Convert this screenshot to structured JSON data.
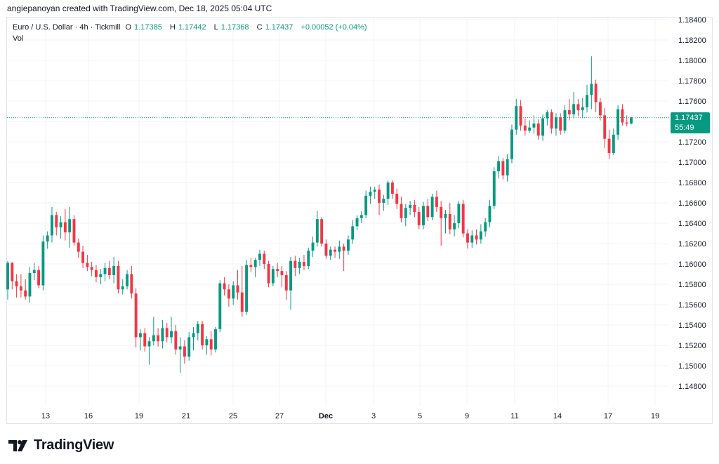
{
  "header": {
    "credit": "angiepanoyan created with TradingView.com, Dec 18, 2025 05:04 UTC"
  },
  "legend": {
    "symbol": "Euro / U.S. Dollar · 4h · Tickmill",
    "open_label": "O",
    "open": "1.17385",
    "high_label": "H",
    "high": "1.17442",
    "low_label": "L",
    "low": "1.17368",
    "close_label": "C",
    "close": "1.17437",
    "change": "+0.00052 (+0.04%)",
    "vol": "Vol"
  },
  "price_tag": {
    "price": "1.17437",
    "countdown": "55:49"
  },
  "brand": {
    "name": "TradingView"
  },
  "colors": {
    "up": "#089981",
    "down": "#f23645",
    "grid": "#f0f3fa",
    "text": "#131722"
  },
  "chart_data": {
    "type": "candlestick",
    "y_ticks": [
      1.184,
      1.182,
      1.18,
      1.178,
      1.176,
      1.174,
      1.172,
      1.17,
      1.168,
      1.166,
      1.164,
      1.162,
      1.16,
      1.158,
      1.156,
      1.154,
      1.152,
      1.15,
      1.148
    ],
    "y_tick_labels": [
      "1.18400",
      "1.18200",
      "1.18000",
      "1.17800",
      "1.17600",
      "1.17400",
      "1.17200",
      "1.17000",
      "1.16800",
      "1.16600",
      "1.16400",
      "1.16200",
      "1.16000",
      "1.15800",
      "1.15600",
      "1.15400",
      "1.15200",
      "1.15000",
      "1.14800"
    ],
    "x_ticks": [
      "13",
      "16",
      "19",
      "21",
      "25",
      "27",
      "Dec",
      "3",
      "5",
      "9",
      "11",
      "14",
      "17",
      "19"
    ],
    "last_price": 1.17437,
    "candles": [
      [
        1.1575,
        1.1603,
        1.1565,
        1.1601
      ],
      [
        1.1601,
        1.1602,
        1.1575,
        1.1583
      ],
      [
        1.1583,
        1.159,
        1.1567,
        1.1578
      ],
      [
        1.1578,
        1.159,
        1.1567,
        1.1574
      ],
      [
        1.1574,
        1.1585,
        1.1565,
        1.1568
      ],
      [
        1.1568,
        1.1597,
        1.1562,
        1.1591
      ],
      [
        1.1591,
        1.1601,
        1.1584,
        1.1594
      ],
      [
        1.1594,
        1.1598,
        1.1576,
        1.1579
      ],
      [
        1.1579,
        1.1628,
        1.1574,
        1.1622
      ],
      [
        1.1622,
        1.1632,
        1.1615,
        1.1628
      ],
      [
        1.1628,
        1.1656,
        1.1621,
        1.1648
      ],
      [
        1.1648,
        1.1651,
        1.1628,
        1.1636
      ],
      [
        1.1636,
        1.1647,
        1.1625,
        1.1641
      ],
      [
        1.1641,
        1.1654,
        1.1623,
        1.1631
      ],
      [
        1.1631,
        1.1656,
        1.1616,
        1.1644
      ],
      [
        1.1644,
        1.1648,
        1.1618,
        1.1621
      ],
      [
        1.1621,
        1.1625,
        1.1606,
        1.1612
      ],
      [
        1.1612,
        1.1618,
        1.1596,
        1.1601
      ],
      [
        1.1601,
        1.1609,
        1.1593,
        1.1597
      ],
      [
        1.1597,
        1.1602,
        1.1588,
        1.1594
      ],
      [
        1.1594,
        1.1599,
        1.1582,
        1.1587
      ],
      [
        1.1587,
        1.1595,
        1.158,
        1.159
      ],
      [
        1.159,
        1.1601,
        1.1583,
        1.1596
      ],
      [
        1.1596,
        1.1603,
        1.1585,
        1.1589
      ],
      [
        1.1589,
        1.1607,
        1.1581,
        1.1598
      ],
      [
        1.1598,
        1.1603,
        1.1571,
        1.1575
      ],
      [
        1.1575,
        1.1585,
        1.157,
        1.1578
      ],
      [
        1.1578,
        1.1594,
        1.1575,
        1.159
      ],
      [
        1.159,
        1.1598,
        1.1566,
        1.1571
      ],
      [
        1.1571,
        1.1576,
        1.1518,
        1.1528
      ],
      [
        1.1528,
        1.1536,
        1.1515,
        1.1532
      ],
      [
        1.1532,
        1.1537,
        1.1514,
        1.1519
      ],
      [
        1.1519,
        1.1528,
        1.1501,
        1.1524
      ],
      [
        1.1524,
        1.1548,
        1.152,
        1.153
      ],
      [
        1.153,
        1.1537,
        1.1519,
        1.1524
      ],
      [
        1.1524,
        1.1545,
        1.1517,
        1.1537
      ],
      [
        1.1537,
        1.1542,
        1.1523,
        1.1528
      ],
      [
        1.1528,
        1.1548,
        1.1522,
        1.1534
      ],
      [
        1.1534,
        1.154,
        1.1511,
        1.1516
      ],
      [
        1.1516,
        1.1528,
        1.1493,
        1.1519
      ],
      [
        1.1519,
        1.1525,
        1.1502,
        1.1509
      ],
      [
        1.1509,
        1.1533,
        1.1505,
        1.1528
      ],
      [
        1.1528,
        1.1538,
        1.1515,
        1.1532
      ],
      [
        1.1532,
        1.1544,
        1.1525,
        1.1541
      ],
      [
        1.1541,
        1.1544,
        1.1516,
        1.152
      ],
      [
        1.152,
        1.1529,
        1.1511,
        1.1526
      ],
      [
        1.1526,
        1.1534,
        1.151,
        1.1516
      ],
      [
        1.1516,
        1.1538,
        1.1513,
        1.1536
      ],
      [
        1.1536,
        1.1584,
        1.1533,
        1.1581
      ],
      [
        1.1581,
        1.1587,
        1.1569,
        1.1575
      ],
      [
        1.1575,
        1.158,
        1.1558,
        1.1566
      ],
      [
        1.1566,
        1.1583,
        1.156,
        1.1579
      ],
      [
        1.1579,
        1.1594,
        1.1565,
        1.1572
      ],
      [
        1.1572,
        1.1598,
        1.1548,
        1.1553
      ],
      [
        1.1553,
        1.1604,
        1.155,
        1.1599
      ],
      [
        1.1599,
        1.1606,
        1.1592,
        1.1597
      ],
      [
        1.1597,
        1.1606,
        1.1587,
        1.1604
      ],
      [
        1.1604,
        1.1614,
        1.1598,
        1.161
      ],
      [
        1.161,
        1.1613,
        1.1595,
        1.16
      ],
      [
        1.16,
        1.1603,
        1.1577,
        1.1581
      ],
      [
        1.1581,
        1.1598,
        1.1578,
        1.1595
      ],
      [
        1.1595,
        1.1601,
        1.1587,
        1.1593
      ],
      [
        1.1593,
        1.1598,
        1.1577,
        1.1589
      ],
      [
        1.1589,
        1.1593,
        1.1565,
        1.1574
      ],
      [
        1.1574,
        1.1607,
        1.1555,
        1.1603
      ],
      [
        1.1603,
        1.1608,
        1.1588,
        1.1596
      ],
      [
        1.1596,
        1.1606,
        1.159,
        1.1602
      ],
      [
        1.1602,
        1.1609,
        1.1594,
        1.1598
      ],
      [
        1.1598,
        1.1616,
        1.1595,
        1.1613
      ],
      [
        1.1613,
        1.1627,
        1.1607,
        1.1621
      ],
      [
        1.1621,
        1.1652,
        1.1617,
        1.1644
      ],
      [
        1.1644,
        1.1646,
        1.1617,
        1.162
      ],
      [
        1.162,
        1.1624,
        1.1605,
        1.1608
      ],
      [
        1.1608,
        1.1617,
        1.1604,
        1.1614
      ],
      [
        1.1614,
        1.1617,
        1.1606,
        1.1612
      ],
      [
        1.1612,
        1.1623,
        1.1605,
        1.1617
      ],
      [
        1.1617,
        1.162,
        1.1593,
        1.1613
      ],
      [
        1.1613,
        1.1628,
        1.1609,
        1.1624
      ],
      [
        1.1624,
        1.1643,
        1.162,
        1.1637
      ],
      [
        1.1637,
        1.1648,
        1.1633,
        1.1645
      ],
      [
        1.1645,
        1.1652,
        1.164,
        1.1648
      ],
      [
        1.1648,
        1.1672,
        1.1645,
        1.1667
      ],
      [
        1.1667,
        1.1676,
        1.1659,
        1.1671
      ],
      [
        1.1671,
        1.1676,
        1.1664,
        1.1673
      ],
      [
        1.1673,
        1.1678,
        1.1648,
        1.166
      ],
      [
        1.166,
        1.1668,
        1.1652,
        1.1664
      ],
      [
        1.1664,
        1.1682,
        1.1658,
        1.168
      ],
      [
        1.168,
        1.1682,
        1.1664,
        1.1669
      ],
      [
        1.1669,
        1.1674,
        1.1654,
        1.1659
      ],
      [
        1.1659,
        1.1666,
        1.1641,
        1.1645
      ],
      [
        1.1645,
        1.1659,
        1.1637,
        1.1655
      ],
      [
        1.1655,
        1.1662,
        1.1648,
        1.1658
      ],
      [
        1.1658,
        1.1663,
        1.1646,
        1.1651
      ],
      [
        1.1651,
        1.1656,
        1.1634,
        1.1638
      ],
      [
        1.1638,
        1.1661,
        1.1634,
        1.1657
      ],
      [
        1.1657,
        1.1664,
        1.1642,
        1.1646
      ],
      [
        1.1646,
        1.1669,
        1.1643,
        1.1666
      ],
      [
        1.1666,
        1.1672,
        1.1651,
        1.1656
      ],
      [
        1.1656,
        1.1662,
        1.1618,
        1.1645
      ],
      [
        1.1645,
        1.1653,
        1.163,
        1.1649
      ],
      [
        1.1649,
        1.166,
        1.1629,
        1.1634
      ],
      [
        1.1634,
        1.1648,
        1.1627,
        1.164
      ],
      [
        1.164,
        1.1662,
        1.1635,
        1.1659
      ],
      [
        1.1659,
        1.1663,
        1.1626,
        1.163
      ],
      [
        1.163,
        1.1634,
        1.1615,
        1.1621
      ],
      [
        1.1621,
        1.1633,
        1.1616,
        1.1628
      ],
      [
        1.1628,
        1.1634,
        1.1619,
        1.1624
      ],
      [
        1.1624,
        1.1639,
        1.162,
        1.1632
      ],
      [
        1.1632,
        1.1645,
        1.1627,
        1.1641
      ],
      [
        1.1641,
        1.1663,
        1.1636,
        1.1657
      ],
      [
        1.1657,
        1.1695,
        1.1654,
        1.1691
      ],
      [
        1.1691,
        1.1706,
        1.1684,
        1.1701
      ],
      [
        1.1701,
        1.1704,
        1.1683,
        1.1687
      ],
      [
        1.1687,
        1.1708,
        1.1681,
        1.1703
      ],
      [
        1.1703,
        1.1737,
        1.1699,
        1.1732
      ],
      [
        1.1732,
        1.1762,
        1.1727,
        1.1755
      ],
      [
        1.1755,
        1.1761,
        1.1731,
        1.1736
      ],
      [
        1.1736,
        1.1743,
        1.1726,
        1.1731
      ],
      [
        1.1731,
        1.1741,
        1.1729,
        1.1734
      ],
      [
        1.1734,
        1.1746,
        1.1728,
        1.1738
      ],
      [
        1.1738,
        1.1742,
        1.1722,
        1.1726
      ],
      [
        1.1726,
        1.1747,
        1.1721,
        1.1743
      ],
      [
        1.1743,
        1.1751,
        1.1736,
        1.1749
      ],
      [
        1.1749,
        1.1752,
        1.1728,
        1.1733
      ],
      [
        1.1733,
        1.1748,
        1.1726,
        1.1744
      ],
      [
        1.1744,
        1.1748,
        1.1727,
        1.1731
      ],
      [
        1.1731,
        1.1756,
        1.1728,
        1.1751
      ],
      [
        1.1751,
        1.1762,
        1.1741,
        1.1747
      ],
      [
        1.1747,
        1.1769,
        1.1743,
        1.1757
      ],
      [
        1.1757,
        1.1762,
        1.1745,
        1.1751
      ],
      [
        1.1751,
        1.1763,
        1.1744,
        1.1754
      ],
      [
        1.1754,
        1.1776,
        1.1749,
        1.1766
      ],
      [
        1.1766,
        1.1804,
        1.1752,
        1.1777
      ],
      [
        1.1777,
        1.1781,
        1.1749,
        1.1759
      ],
      [
        1.1759,
        1.1763,
        1.1741,
        1.1746
      ],
      [
        1.1746,
        1.1753,
        1.1714,
        1.1723
      ],
      [
        1.1723,
        1.1732,
        1.1703,
        1.1709
      ],
      [
        1.1709,
        1.1733,
        1.1707,
        1.1727
      ],
      [
        1.1727,
        1.1756,
        1.1722,
        1.1752
      ],
      [
        1.1752,
        1.1757,
        1.1736,
        1.1739
      ],
      [
        1.1739,
        1.1746,
        1.1735,
        1.1738
      ],
      [
        1.1738,
        1.1744,
        1.1737,
        1.1744
      ]
    ]
  }
}
